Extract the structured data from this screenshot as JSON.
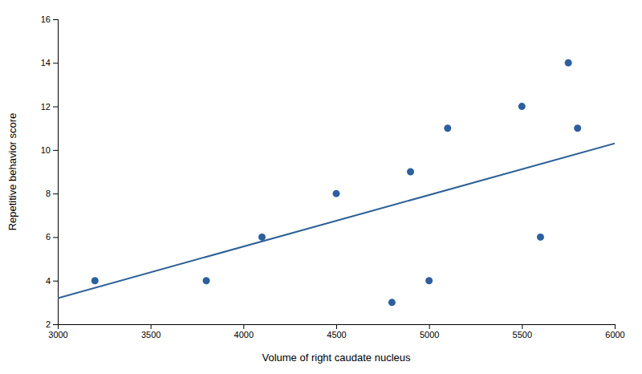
{
  "chart_data": {
    "type": "scatter",
    "xlabel": "Volume of right caudate nucleus",
    "ylabel": "Repetitive behavior score",
    "series": [
      {
        "type": "scatter",
        "color": "#2c5f9e",
        "x": [
          3200,
          3800,
          4100,
          4500,
          4800,
          4900,
          5000,
          5100,
          5500,
          5600,
          5750,
          5800
        ],
        "values": [
          4,
          4,
          6,
          8,
          3,
          9,
          4,
          11,
          12,
          6,
          14,
          11
        ]
      },
      {
        "type": "line",
        "color": "#2c6096",
        "x": [
          3000,
          6000
        ],
        "values": [
          3.2,
          10.3
        ]
      }
    ],
    "xlim": [
      3000,
      6000
    ],
    "ylim": [
      2,
      16
    ],
    "xticks": [
      3000,
      3500,
      4000,
      4500,
      5000,
      5500,
      6000
    ],
    "yticks": [
      2,
      4,
      6,
      8,
      10,
      12,
      14,
      16
    ],
    "grid": false
  }
}
